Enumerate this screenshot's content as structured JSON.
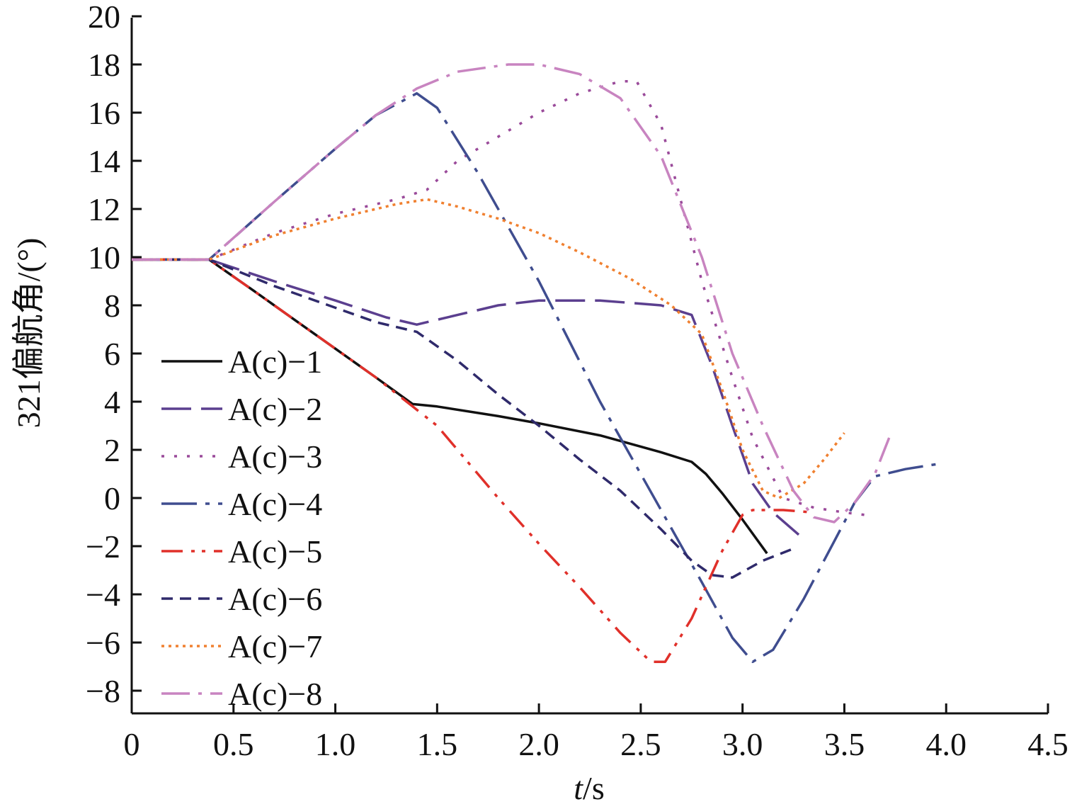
{
  "chart_data": {
    "type": "line",
    "xlabel_italic": "t",
    "xlabel_unit": "/s",
    "ylabel": "321偏航角/(°)",
    "xlim": [
      0,
      4.5
    ],
    "ylim": [
      -9,
      20
    ],
    "x_ticks": [
      0,
      0.5,
      1.0,
      1.5,
      2.0,
      2.5,
      3.0,
      3.5,
      4.0,
      4.5
    ],
    "x_tick_labels": [
      "0",
      "0.5",
      "1.0",
      "1.5",
      "2.0",
      "2.5",
      "3.0",
      "3.5",
      "4.0",
      "4.5"
    ],
    "y_ticks": [
      -8,
      -6,
      -4,
      -2,
      0,
      2,
      4,
      6,
      8,
      10,
      12,
      14,
      16,
      18,
      20
    ],
    "y_tick_labels": [
      "−8",
      "−6",
      "−4",
      "−2",
      "0",
      "2",
      "4",
      "6",
      "8",
      "10",
      "12",
      "14",
      "16",
      "18",
      "20"
    ],
    "grid": false,
    "legend_position": "left",
    "series": [
      {
        "name": "A(c)−1",
        "color": "#111111",
        "dash": "",
        "points": [
          [
            0,
            9.9
          ],
          [
            0.38,
            9.9
          ],
          [
            0.6,
            8.6
          ],
          [
            0.8,
            7.4
          ],
          [
            1.0,
            6.2
          ],
          [
            1.2,
            5.0
          ],
          [
            1.38,
            3.9
          ],
          [
            1.5,
            3.8
          ],
          [
            1.8,
            3.4
          ],
          [
            2.0,
            3.1
          ],
          [
            2.3,
            2.6
          ],
          [
            2.6,
            1.9
          ],
          [
            2.75,
            1.5
          ],
          [
            2.82,
            1.0
          ],
          [
            2.9,
            0.2
          ],
          [
            3.0,
            -0.9
          ],
          [
            3.12,
            -2.3
          ]
        ]
      },
      {
        "name": "A(c)−2",
        "color": "#5b3f8f",
        "dash": "42,14",
        "points": [
          [
            0,
            9.9
          ],
          [
            0.38,
            9.9
          ],
          [
            0.7,
            9.0
          ],
          [
            1.0,
            8.2
          ],
          [
            1.25,
            7.5
          ],
          [
            1.4,
            7.2
          ],
          [
            1.6,
            7.6
          ],
          [
            1.8,
            8.0
          ],
          [
            2.0,
            8.2
          ],
          [
            2.3,
            8.2
          ],
          [
            2.6,
            8.0
          ],
          [
            2.75,
            7.6
          ],
          [
            2.85,
            5.5
          ],
          [
            2.95,
            3.0
          ],
          [
            3.05,
            0.6
          ],
          [
            3.15,
            -0.6
          ],
          [
            3.3,
            -1.7
          ]
        ]
      },
      {
        "name": "A(c)−3",
        "color": "#9a4a9a",
        "dash": "4,14",
        "points": [
          [
            0,
            9.9
          ],
          [
            0.38,
            9.9
          ],
          [
            0.7,
            11.0
          ],
          [
            1.0,
            11.8
          ],
          [
            1.3,
            12.4
          ],
          [
            1.45,
            12.8
          ],
          [
            1.6,
            14.0
          ],
          [
            1.8,
            15.0
          ],
          [
            2.0,
            16.0
          ],
          [
            2.2,
            16.8
          ],
          [
            2.4,
            17.3
          ],
          [
            2.48,
            17.3
          ],
          [
            2.6,
            15.5
          ],
          [
            2.8,
            9.0
          ],
          [
            2.95,
            5.0
          ],
          [
            3.05,
            2.5
          ],
          [
            3.2,
            0.0
          ],
          [
            3.35,
            -0.4
          ],
          [
            3.5,
            -0.6
          ],
          [
            3.6,
            -0.7
          ]
        ]
      },
      {
        "name": "A(c)−4",
        "color": "#3f4d8f",
        "dash": "50,12,6,12",
        "points": [
          [
            0,
            9.9
          ],
          [
            0.38,
            9.9
          ],
          [
            0.7,
            12.3
          ],
          [
            1.0,
            14.5
          ],
          [
            1.2,
            15.9
          ],
          [
            1.4,
            16.8
          ],
          [
            1.5,
            16.2
          ],
          [
            1.7,
            13.5
          ],
          [
            2.0,
            9.0
          ],
          [
            2.3,
            4.0
          ],
          [
            2.6,
            -0.5
          ],
          [
            2.8,
            -3.5
          ],
          [
            2.95,
            -5.8
          ],
          [
            3.05,
            -6.8
          ],
          [
            3.15,
            -6.3
          ],
          [
            3.3,
            -4.2
          ],
          [
            3.45,
            -1.8
          ],
          [
            3.55,
            -0.2
          ],
          [
            3.65,
            0.9
          ],
          [
            3.8,
            1.2
          ],
          [
            3.95,
            1.4
          ]
        ]
      },
      {
        "name": "A(c)−5",
        "color": "#e0302a",
        "dash": "30,12,5,10,5,12",
        "points": [
          [
            0,
            9.9
          ],
          [
            0.38,
            9.9
          ],
          [
            0.6,
            8.6
          ],
          [
            0.8,
            7.4
          ],
          [
            1.0,
            6.2
          ],
          [
            1.2,
            5.0
          ],
          [
            1.38,
            3.8
          ],
          [
            1.5,
            3.0
          ],
          [
            1.8,
            0.0
          ],
          [
            2.0,
            -1.9
          ],
          [
            2.2,
            -3.7
          ],
          [
            2.4,
            -5.6
          ],
          [
            2.55,
            -6.8
          ],
          [
            2.62,
            -6.8
          ],
          [
            2.75,
            -5.0
          ],
          [
            2.9,
            -2.2
          ],
          [
            3.0,
            -0.7
          ],
          [
            3.05,
            -0.5
          ],
          [
            3.2,
            -0.5
          ],
          [
            3.35,
            -0.6
          ]
        ]
      },
      {
        "name": "A(c)−6",
        "color": "#2f2a6b",
        "dash": "16,10",
        "points": [
          [
            0,
            9.9
          ],
          [
            0.38,
            9.9
          ],
          [
            0.7,
            8.8
          ],
          [
            1.0,
            7.9
          ],
          [
            1.2,
            7.3
          ],
          [
            1.4,
            6.9
          ],
          [
            1.6,
            5.7
          ],
          [
            1.8,
            4.3
          ],
          [
            2.0,
            3.0
          ],
          [
            2.2,
            1.6
          ],
          [
            2.4,
            0.3
          ],
          [
            2.6,
            -1.3
          ],
          [
            2.75,
            -2.6
          ],
          [
            2.85,
            -3.2
          ],
          [
            2.95,
            -3.3
          ],
          [
            3.1,
            -2.6
          ],
          [
            3.25,
            -2.1
          ]
        ]
      },
      {
        "name": "A(c)−7",
        "color": "#f08030",
        "dash": "4,6",
        "points": [
          [
            0,
            9.9
          ],
          [
            0.38,
            9.9
          ],
          [
            0.7,
            10.9
          ],
          [
            1.0,
            11.6
          ],
          [
            1.3,
            12.2
          ],
          [
            1.45,
            12.4
          ],
          [
            1.6,
            12.1
          ],
          [
            1.8,
            11.6
          ],
          [
            2.0,
            11.0
          ],
          [
            2.2,
            10.2
          ],
          [
            2.45,
            9.1
          ],
          [
            2.65,
            8.0
          ],
          [
            2.8,
            6.8
          ],
          [
            2.9,
            4.5
          ],
          [
            3.0,
            2.0
          ],
          [
            3.1,
            0.3
          ],
          [
            3.18,
            0.0
          ],
          [
            3.3,
            0.6
          ],
          [
            3.4,
            1.6
          ],
          [
            3.5,
            2.7
          ]
        ]
      },
      {
        "name": "A(c)−8",
        "color": "#c884c0",
        "dash": "40,12,5,12",
        "points": [
          [
            0,
            9.9
          ],
          [
            0.38,
            9.9
          ],
          [
            0.7,
            12.3
          ],
          [
            1.0,
            14.5
          ],
          [
            1.2,
            15.9
          ],
          [
            1.4,
            17.0
          ],
          [
            1.6,
            17.7
          ],
          [
            1.85,
            18.0
          ],
          [
            2.0,
            18.0
          ],
          [
            2.2,
            17.6
          ],
          [
            2.4,
            16.6
          ],
          [
            2.6,
            14.2
          ],
          [
            2.8,
            10.0
          ],
          [
            2.95,
            6.0
          ],
          [
            3.1,
            3.0
          ],
          [
            3.25,
            0.3
          ],
          [
            3.35,
            -0.8
          ],
          [
            3.45,
            -1.0
          ],
          [
            3.55,
            -0.2
          ],
          [
            3.65,
            1.0
          ],
          [
            3.72,
            2.5
          ]
        ]
      }
    ]
  }
}
